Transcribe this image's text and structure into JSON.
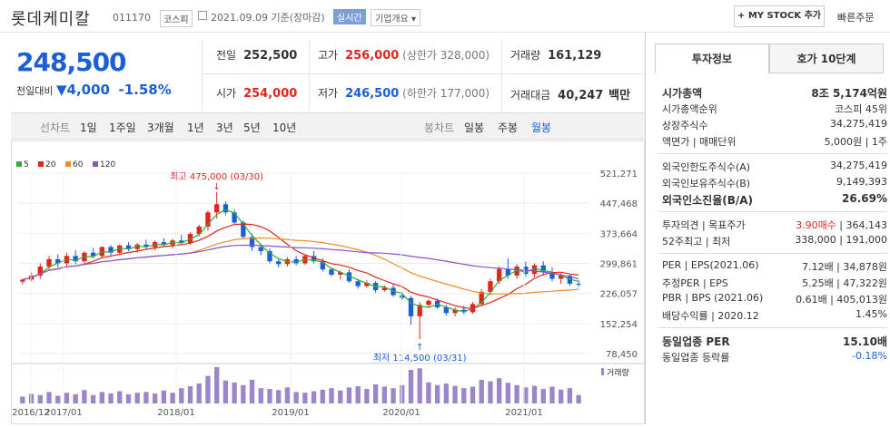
{
  "header": {
    "name": "롯데케미칼",
    "code": "011170",
    "market": "코스피",
    "date": "2021.09.09 기준(장마감)",
    "realtime": "실시간",
    "company_info": "기업개요",
    "mystock": "+ MY STOCK 추가",
    "quick_order": "빠른주문"
  },
  "quote": {
    "price": "248,500",
    "change_label": "전일대비",
    "change_value": "4,000",
    "change_pct": "-1.58%"
  },
  "summary": {
    "prev_label": "전일",
    "prev": "252,500",
    "high_label": "고가",
    "high": "256,000",
    "high_limit": "(상한가 328,000)",
    "volume_label": "거래량",
    "volume": "161,129",
    "open_label": "시가",
    "open": "254,000",
    "low_label": "저가",
    "low": "246,500",
    "low_limit": "(하한가 177,000)",
    "amount_label": "거래대금",
    "amount": "40,247",
    "amount_unit": "백만"
  },
  "tabs": {
    "line_label": "선차트",
    "line": [
      "1일",
      "1주일",
      "3개월",
      "1년",
      "3년",
      "5년",
      "10년"
    ],
    "candle_label": "봉차트",
    "candle": [
      "일봉",
      "주봉",
      "월봉"
    ]
  },
  "chart_data": {
    "type": "candlestick",
    "legend": [
      "5",
      "20",
      "60",
      "120"
    ],
    "legend_colors": [
      "#2fae3a",
      "#e0261b",
      "#f08c1e",
      "#8a53c9"
    ],
    "y_ticks": [
      "521,271",
      "447,468",
      "373,664",
      "299,861",
      "226,057",
      "152,254",
      "78,450"
    ],
    "y_tick_values": [
      521271,
      447468,
      373664,
      299861,
      226057,
      152254,
      78450
    ],
    "x_ticks": [
      "2016/12",
      "2017/01",
      "2018/01",
      "2019/01",
      "2020/01",
      "2021/01"
    ],
    "high_annotation": "최고 475,000 (03/30)",
    "low_annotation": "최저 114,500 (03/31)",
    "volume_label": "거래량",
    "candles": [
      [
        255,
        262,
        248,
        260
      ],
      [
        260,
        278,
        255,
        270
      ],
      [
        270,
        300,
        262,
        292
      ],
      [
        292,
        318,
        285,
        310
      ],
      [
        310,
        322,
        290,
        300
      ],
      [
        300,
        326,
        292,
        318
      ],
      [
        318,
        332,
        298,
        305
      ],
      [
        305,
        330,
        296,
        326
      ],
      [
        326,
        338,
        312,
        318
      ],
      [
        318,
        342,
        314,
        340
      ],
      [
        340,
        345,
        320,
        326
      ],
      [
        326,
        346,
        322,
        344
      ],
      [
        344,
        352,
        330,
        335
      ],
      [
        335,
        350,
        326,
        346
      ],
      [
        346,
        358,
        336,
        340
      ],
      [
        340,
        356,
        332,
        352
      ],
      [
        352,
        362,
        340,
        345
      ],
      [
        345,
        360,
        338,
        356
      ],
      [
        356,
        370,
        346,
        350
      ],
      [
        350,
        376,
        346,
        372
      ],
      [
        372,
        395,
        366,
        390
      ],
      [
        390,
        430,
        380,
        425
      ],
      [
        425,
        475,
        410,
        445
      ],
      [
        445,
        452,
        418,
        425
      ],
      [
        425,
        432,
        395,
        400
      ],
      [
        400,
        405,
        360,
        365
      ],
      [
        365,
        372,
        330,
        340
      ],
      [
        340,
        348,
        320,
        330
      ],
      [
        330,
        336,
        300,
        305
      ],
      [
        305,
        312,
        290,
        298
      ],
      [
        298,
        315,
        292,
        310
      ],
      [
        310,
        318,
        295,
        300
      ],
      [
        300,
        322,
        296,
        318
      ],
      [
        318,
        330,
        300,
        305
      ],
      [
        305,
        312,
        280,
        285
      ],
      [
        285,
        290,
        268,
        272
      ],
      [
        272,
        282,
        260,
        278
      ],
      [
        278,
        285,
        252,
        256
      ],
      [
        256,
        262,
        238,
        244
      ],
      [
        244,
        258,
        240,
        252
      ],
      [
        252,
        256,
        228,
        234
      ],
      [
        234,
        246,
        230,
        240
      ],
      [
        240,
        248,
        218,
        222
      ],
      [
        222,
        230,
        210,
        215
      ],
      [
        215,
        220,
        150,
        170
      ],
      [
        170,
        205,
        114,
        198
      ],
      [
        198,
        212,
        192,
        208
      ],
      [
        208,
        214,
        188,
        192
      ],
      [
        192,
        198,
        172,
        178
      ],
      [
        178,
        192,
        170,
        186
      ],
      [
        186,
        196,
        175,
        180
      ],
      [
        180,
        205,
        176,
        200
      ],
      [
        200,
        236,
        196,
        230
      ],
      [
        230,
        262,
        222,
        256
      ],
      [
        256,
        292,
        250,
        286
      ],
      [
        286,
        312,
        262,
        270
      ],
      [
        270,
        298,
        262,
        292
      ],
      [
        292,
        304,
        268,
        274
      ],
      [
        274,
        300,
        266,
        295
      ],
      [
        295,
        305,
        270,
        278
      ],
      [
        278,
        290,
        256,
        262
      ],
      [
        262,
        276,
        250,
        270
      ],
      [
        270,
        272,
        245,
        250
      ],
      [
        250,
        258,
        242,
        248
      ]
    ],
    "volumes": [
      18,
      25,
      22,
      30,
      20,
      28,
      24,
      35,
      22,
      30,
      26,
      32,
      24,
      28,
      30,
      26,
      34,
      28,
      40,
      45,
      52,
      72,
      95,
      60,
      55,
      48,
      62,
      40,
      38,
      35,
      42,
      30,
      28,
      32,
      36,
      40,
      34,
      42,
      45,
      38,
      50,
      44,
      40,
      48,
      88,
      92,
      55,
      48,
      52,
      46,
      40,
      44,
      62,
      58,
      66,
      54,
      48,
      42,
      46,
      38,
      44,
      36,
      40,
      22
    ],
    "ylim": [
      78450,
      521271
    ]
  },
  "invest": {
    "tab_on": "투자정보",
    "tab_off": "호가 10단계",
    "rows1": [
      {
        "k": "시가총액",
        "v": "8조 5,174억원",
        "bold": true
      },
      {
        "k": "시가총액순위",
        "v": "코스피 45위"
      },
      {
        "k": "상장주식수",
        "v": "34,275,419"
      },
      {
        "k": "액면가 | 매매단위",
        "v": "5,000원 | 1주"
      }
    ],
    "rows2": [
      {
        "k": "외국인한도주식수(A)",
        "v": "34,275,419"
      },
      {
        "k": "외국인보유주식수(B)",
        "v": "9,149,393"
      },
      {
        "k": "외국인소진율(B/A)",
        "v": "26.69%",
        "bold": true
      }
    ],
    "target": {
      "k": "투자의견 | 목표주가",
      "opinion": "3.90매수",
      "price": "364,143"
    },
    "week52": {
      "k": "52주최고 | 최저",
      "v": "338,000 | 191,000"
    },
    "per": {
      "k": "PER | EPS(2021.06)",
      "v1": "7.12배",
      "v2": "34,878원"
    },
    "eper": {
      "k": "추정PER | EPS",
      "v1": "5.25배",
      "v2": "47,322원"
    },
    "pbr": {
      "k": "PBR | BPS (2021.06)",
      "v1": "0.61배",
      "v2": "405,013원"
    },
    "div": {
      "k": "배당수익률 | 2020.12",
      "v": "1.45%"
    },
    "sector_per": {
      "k": "동일업종 PER",
      "v": "15.10배"
    },
    "sector_rate": {
      "k": "동일업종 등락률",
      "v": "-0.18%"
    }
  }
}
